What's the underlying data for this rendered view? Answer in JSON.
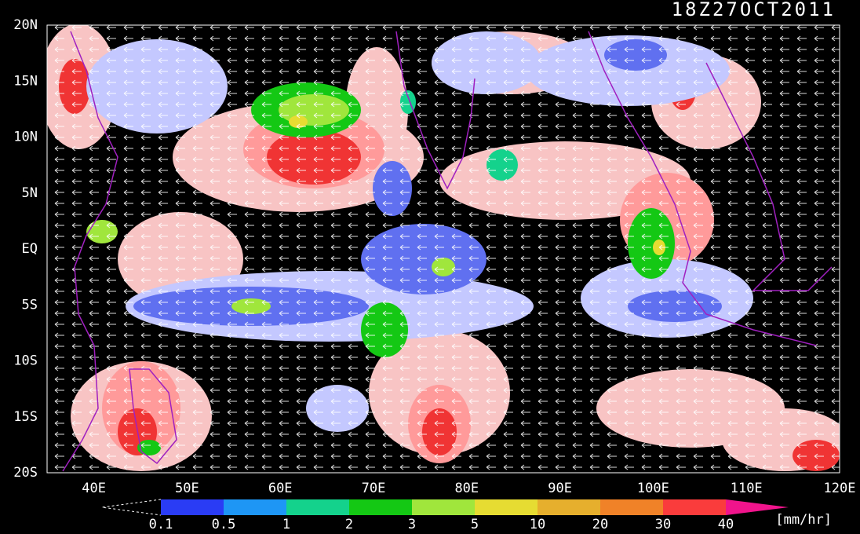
{
  "title": "18Z27OCT2011",
  "lat_labels": [
    "20N",
    "15N",
    "10N",
    "5N",
    "EQ",
    "5S",
    "10S",
    "15S",
    "20S"
  ],
  "lon_labels": [
    "40E",
    "50E",
    "60E",
    "70E",
    "80E",
    "90E",
    "100E",
    "110E",
    "120E"
  ],
  "colorbar": {
    "levels": [
      0.1,
      0.5,
      1,
      2,
      3,
      5,
      10,
      20,
      30,
      40
    ],
    "colors": [
      "#2a3cf5",
      "#1e96f5",
      "#14d28c",
      "#14c814",
      "#a0e63c",
      "#e6dc32",
      "#e6af2d",
      "#f08228",
      "#fa3c3c",
      "#f0148c"
    ],
    "units": "[mm/hr]"
  }
}
